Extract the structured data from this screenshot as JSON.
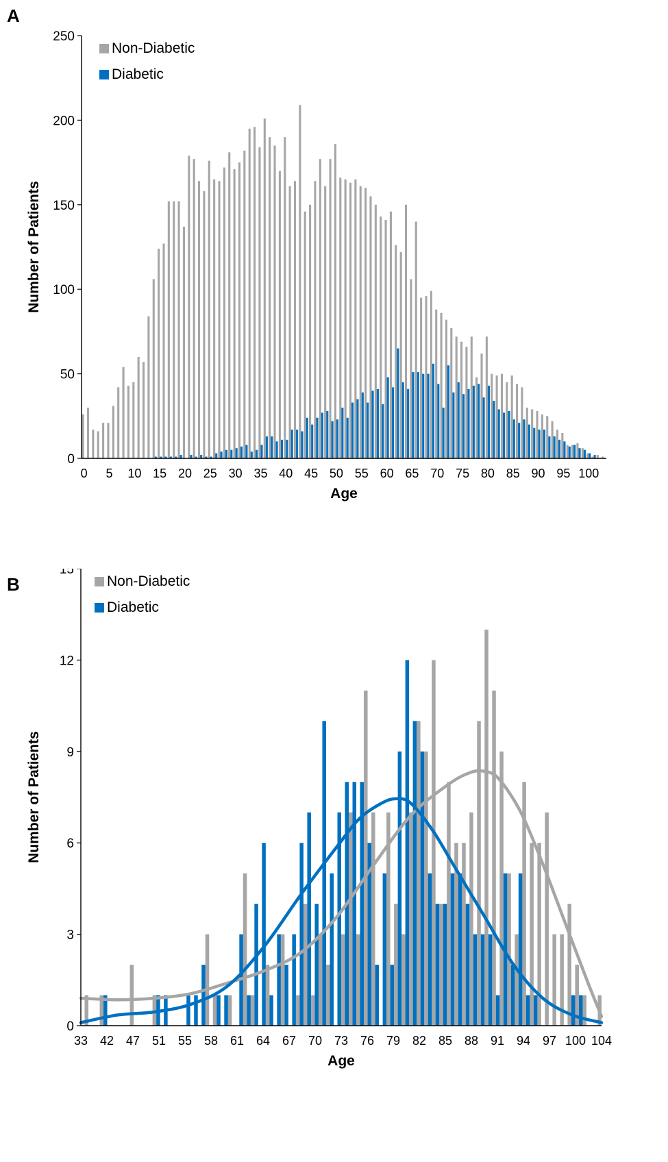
{
  "chart_data": [
    {
      "type": "bar",
      "panel_label": "A",
      "xlabel": "Age",
      "ylabel": "Number of Patients",
      "ylim": [
        0,
        250
      ],
      "yticks": [
        0,
        50,
        100,
        150,
        200,
        250
      ],
      "xticks": [
        0,
        5,
        10,
        15,
        20,
        25,
        30,
        35,
        40,
        45,
        50,
        55,
        60,
        65,
        70,
        75,
        80,
        85,
        90,
        95,
        100
      ],
      "x": [
        0,
        1,
        2,
        3,
        4,
        5,
        6,
        7,
        8,
        9,
        10,
        11,
        12,
        13,
        14,
        15,
        16,
        17,
        18,
        19,
        20,
        21,
        22,
        23,
        24,
        25,
        26,
        27,
        28,
        29,
        30,
        31,
        32,
        33,
        34,
        35,
        36,
        37,
        38,
        39,
        40,
        41,
        42,
        43,
        44,
        45,
        46,
        47,
        48,
        49,
        50,
        51,
        52,
        53,
        54,
        55,
        56,
        57,
        58,
        59,
        60,
        61,
        62,
        63,
        64,
        65,
        66,
        67,
        68,
        69,
        70,
        71,
        72,
        73,
        74,
        75,
        76,
        77,
        78,
        79,
        80,
        81,
        82,
        83,
        84,
        85,
        86,
        87,
        88,
        89,
        90,
        91,
        92,
        93,
        94,
        95,
        96,
        97,
        98,
        99,
        100,
        101,
        102,
        103
      ],
      "legend": [
        "Non-Diabetic",
        "Diabetic"
      ],
      "legend_position": "top-left",
      "series": [
        {
          "name": "Non-Diabetic",
          "color": "#a6a6a6",
          "values": [
            26,
            30,
            17,
            16,
            21,
            21,
            31,
            42,
            54,
            43,
            45,
            60,
            57,
            84,
            106,
            124,
            127,
            152,
            152,
            152,
            137,
            179,
            177,
            164,
            158,
            176,
            165,
            164,
            172,
            181,
            171,
            175,
            182,
            195,
            196,
            184,
            201,
            190,
            185,
            170,
            190,
            161,
            164,
            209,
            146,
            150,
            164,
            177,
            161,
            177,
            186,
            166,
            165,
            163,
            165,
            161,
            160,
            155,
            150,
            143,
            141,
            146,
            126,
            122,
            150,
            106,
            140,
            95,
            96,
            99,
            88,
            86,
            82,
            77,
            72,
            69,
            66,
            72,
            48,
            62,
            72,
            50,
            49,
            50,
            45,
            49,
            44,
            42,
            30,
            29,
            28,
            26,
            25,
            22,
            17,
            15,
            8,
            8,
            9,
            6,
            3,
            1,
            2,
            1
          ]
        },
        {
          "name": "Diabetic",
          "color": "#0070c0",
          "values": [
            0,
            0,
            0,
            0,
            0,
            0,
            0,
            0,
            0,
            0,
            0,
            0,
            0,
            0,
            1,
            1,
            1,
            1,
            1,
            2,
            0,
            2,
            1,
            2,
            1,
            1,
            3,
            4,
            5,
            5,
            6,
            7,
            8,
            4,
            5,
            8,
            13,
            13,
            10,
            11,
            11,
            17,
            17,
            16,
            24,
            20,
            24,
            27,
            28,
            22,
            23,
            30,
            24,
            33,
            35,
            39,
            33,
            40,
            41,
            32,
            48,
            42,
            65,
            45,
            41,
            51,
            51,
            50,
            50,
            56,
            44,
            30,
            55,
            39,
            45,
            38,
            41,
            43,
            44,
            36,
            43,
            34,
            29,
            27,
            28,
            23,
            21,
            23,
            20,
            18,
            17,
            17,
            13,
            13,
            11,
            10,
            7,
            8,
            6,
            5,
            3,
            2,
            0,
            0
          ]
        }
      ]
    },
    {
      "type": "bar",
      "panel_label": "B",
      "xlabel": "Age",
      "ylabel": "Number of Patients",
      "ylim": [
        0,
        15
      ],
      "yticks": [
        0,
        3,
        6,
        9,
        12,
        15
      ],
      "xtick_labels": [
        "33",
        "42",
        "47",
        "51",
        "55",
        "58",
        "61",
        "64",
        "67",
        "70",
        "73",
        "76",
        "79",
        "82",
        "85",
        "88",
        "91",
        "94",
        "97",
        "100",
        "104"
      ],
      "categories": [
        "33",
        "37",
        "38",
        "39",
        "40",
        "41",
        "42",
        "43",
        "44",
        "45",
        "46",
        "47",
        "48",
        "49",
        "50",
        "51",
        "52",
        "53",
        "54",
        "55",
        "56",
        "57",
        "58",
        "59",
        "60",
        "61",
        "62",
        "63",
        "64",
        "65",
        "66",
        "67",
        "68",
        "69",
        "70",
        "71",
        "72",
        "73",
        "74",
        "75",
        "76",
        "77",
        "78",
        "79",
        "80",
        "81",
        "82",
        "83",
        "84",
        "85",
        "86",
        "87",
        "88",
        "89",
        "90",
        "91",
        "92",
        "93",
        "94",
        "95",
        "96",
        "97",
        "98",
        "99",
        "100",
        "101",
        "102",
        "103",
        "104"
      ],
      "legend": [
        "Non-Diabetic",
        "Diabetic"
      ],
      "legend_position": "top-left",
      "series": [
        {
          "name": "Non-Diabetic",
          "color": "#a6a6a6",
          "values": [
            1,
            0,
            1,
            0,
            0,
            0,
            2,
            0,
            0,
            1,
            0,
            0,
            0,
            0,
            0,
            0,
            3,
            1,
            0,
            1,
            0,
            5,
            1,
            0,
            2,
            0,
            3,
            0,
            1,
            4,
            1,
            3,
            2,
            0,
            3,
            7,
            3,
            11,
            7,
            0,
            7,
            4,
            3,
            7,
            10,
            9,
            12,
            4,
            8,
            6,
            6,
            7,
            10,
            13,
            11,
            9,
            5,
            3,
            8,
            6,
            6,
            7,
            3,
            3,
            4,
            2,
            1,
            0,
            1
          ]
        },
        {
          "name": "Diabetic",
          "color": "#0070c0",
          "values": [
            0,
            0,
            0,
            1,
            0,
            0,
            0,
            0,
            0,
            0,
            1,
            1,
            0,
            0,
            1,
            1,
            2,
            0,
            1,
            1,
            0,
            3,
            1,
            4,
            6,
            1,
            3,
            2,
            3,
            6,
            7,
            4,
            10,
            5,
            7,
            8,
            8,
            8,
            6,
            2,
            5,
            2,
            9,
            12,
            10,
            9,
            5,
            4,
            4,
            5,
            5,
            4,
            3,
            3,
            3,
            1,
            5,
            2,
            5,
            1,
            1,
            0,
            0,
            0,
            0,
            1,
            1,
            0,
            0
          ]
        }
      ],
      "trendlines": [
        {
          "series": "Non-Diabetic",
          "color": "#a6a6a6",
          "x": [
            33,
            38,
            43,
            48,
            53,
            58,
            63,
            68,
            73,
            78,
            83,
            86,
            88,
            90,
            93,
            96,
            99,
            102,
            104
          ],
          "y": [
            0.9,
            0.85,
            0.9,
            1.05,
            1.4,
            1.8,
            2.4,
            3.6,
            5.3,
            6.9,
            7.9,
            8.3,
            8.35,
            8.1,
            7.0,
            5.3,
            3.4,
            1.5,
            0.3
          ]
        },
        {
          "series": "Diabetic",
          "color": "#0070c0",
          "x": [
            33,
            38,
            43,
            48,
            53,
            58,
            63,
            68,
            71,
            74,
            76,
            78,
            81,
            84,
            88,
            92,
            96,
            100,
            104
          ],
          "y": [
            0.1,
            0.35,
            0.45,
            0.7,
            1.3,
            2.6,
            4.3,
            5.9,
            6.8,
            7.3,
            7.45,
            7.3,
            6.4,
            5.2,
            3.6,
            2.0,
            0.9,
            0.35,
            0.1
          ]
        }
      ]
    }
  ]
}
